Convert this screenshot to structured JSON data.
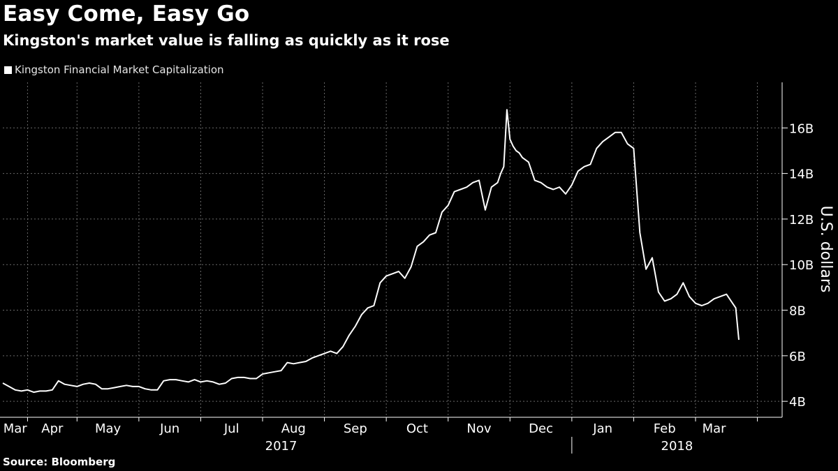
{
  "chart_data": {
    "type": "line",
    "title": "Easy Come, Easy Go",
    "subtitle": "Kingston's market value is falling as quickly as it rose",
    "ylabel": "U.S. dollars",
    "xlabel": "",
    "source": "Source: Bloomberg",
    "ylim": [
      3.3,
      18
    ],
    "yticks": [
      4,
      6,
      8,
      10,
      12,
      14,
      16
    ],
    "ytick_labels": [
      "4B",
      "6B",
      "8B",
      "10B",
      "12B",
      "14B",
      "16B"
    ],
    "x_start": 0,
    "x_end": 12.6,
    "month_labels": [
      "Mar",
      "Apr",
      "May",
      "Jun",
      "Jul",
      "Aug",
      "Sep",
      "Oct",
      "Nov",
      "Dec",
      "Jan",
      "Feb",
      "Mar"
    ],
    "month_label_positions": [
      0.2,
      0.8,
      1.7,
      2.7,
      3.7,
      4.7,
      5.7,
      6.7,
      7.7,
      8.7,
      9.7,
      10.7,
      11.5
    ],
    "gridline_positions": [
      0.4,
      1.2,
      2.2,
      3.2,
      4.2,
      5.2,
      6.2,
      7.2,
      8.2,
      9.2,
      10.2,
      11.2,
      12.2
    ],
    "year_labels": [
      {
        "label": "2017",
        "position": 4.5
      },
      {
        "label": "2018",
        "position": 10.9
      }
    ],
    "year_divider": 9.2,
    "legend": {
      "placement": "top-left",
      "entries": [
        "Kingston Financial Market Capitalization"
      ]
    },
    "grid": true,
    "series": [
      {
        "name": "Kingston Financial Market Capitalization",
        "color": "#ffffff",
        "x": [
          0,
          0.1,
          0.2,
          0.3,
          0.4,
          0.5,
          0.6,
          0.7,
          0.8,
          0.9,
          1.0,
          1.1,
          1.2,
          1.3,
          1.4,
          1.5,
          1.6,
          1.7,
          1.8,
          1.9,
          2.0,
          2.1,
          2.2,
          2.3,
          2.4,
          2.5,
          2.6,
          2.7,
          2.8,
          2.9,
          3.0,
          3.1,
          3.2,
          3.3,
          3.4,
          3.5,
          3.6,
          3.7,
          3.8,
          3.9,
          4.0,
          4.1,
          4.2,
          4.3,
          4.4,
          4.5,
          4.6,
          4.7,
          4.8,
          4.9,
          5.0,
          5.1,
          5.2,
          5.3,
          5.4,
          5.5,
          5.6,
          5.7,
          5.8,
          5.9,
          6.0,
          6.1,
          6.2,
          6.3,
          6.4,
          6.5,
          6.6,
          6.7,
          6.8,
          6.9,
          7.0,
          7.1,
          7.2,
          7.3,
          7.4,
          7.5,
          7.6,
          7.7,
          7.8,
          7.9,
          8.0,
          8.05,
          8.1,
          8.15,
          8.2,
          8.25,
          8.3,
          8.35,
          8.4,
          8.5,
          8.6,
          8.7,
          8.8,
          8.9,
          9.0,
          9.1,
          9.2,
          9.3,
          9.4,
          9.5,
          9.6,
          9.7,
          9.8,
          9.9,
          10.0,
          10.1,
          10.2,
          10.3,
          10.4,
          10.5,
          10.6,
          10.7,
          10.8,
          10.9,
          11.0,
          11.1,
          11.2,
          11.3,
          11.4,
          11.5,
          11.6,
          11.7,
          11.8,
          11.85,
          11.9
        ],
        "values": [
          4.8,
          4.65,
          4.5,
          4.45,
          4.5,
          4.4,
          4.45,
          4.45,
          4.5,
          4.9,
          4.75,
          4.7,
          4.65,
          4.75,
          4.8,
          4.75,
          4.55,
          4.55,
          4.6,
          4.65,
          4.7,
          4.65,
          4.65,
          4.55,
          4.5,
          4.5,
          4.9,
          4.95,
          4.95,
          4.9,
          4.85,
          4.95,
          4.85,
          4.9,
          4.85,
          4.75,
          4.8,
          5.0,
          5.05,
          5.05,
          5.0,
          5.0,
          5.2,
          5.25,
          5.3,
          5.35,
          5.7,
          5.65,
          5.7,
          5.75,
          5.9,
          6.0,
          6.1,
          6.2,
          6.1,
          6.4,
          6.9,
          7.3,
          7.8,
          8.1,
          8.2,
          9.2,
          9.5,
          9.6,
          9.7,
          9.4,
          9.9,
          10.8,
          11.0,
          11.3,
          11.4,
          12.3,
          12.6,
          13.2,
          13.3,
          13.4,
          13.6,
          13.7,
          12.4,
          13.4,
          13.6,
          14.0,
          14.3,
          16.8,
          15.5,
          15.2,
          15.0,
          14.9,
          14.7,
          14.5,
          13.7,
          13.6,
          13.4,
          13.3,
          13.4,
          13.1,
          13.5,
          14.1,
          14.3,
          14.4,
          15.1,
          15.4,
          15.6,
          15.8,
          15.8,
          15.3,
          15.1,
          11.4,
          9.8,
          10.3,
          8.8,
          8.4,
          8.5,
          8.7,
          9.2,
          8.6,
          8.3,
          8.2,
          8.3,
          8.5,
          8.6,
          8.7,
          8.3,
          8.1,
          6.7
        ]
      }
    ]
  }
}
